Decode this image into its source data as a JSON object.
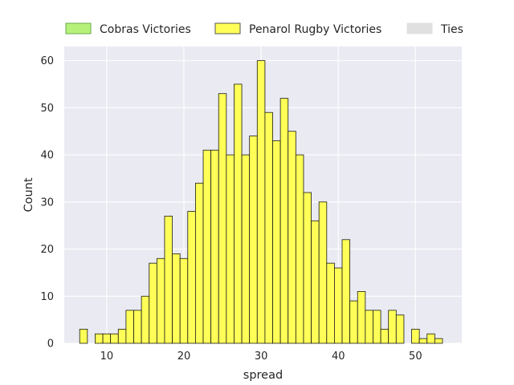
{
  "chart_data": {
    "type": "bar",
    "subtype": "histogram",
    "xlabel": "spread",
    "ylabel": "Count",
    "xlim": [
      4.5,
      56
    ],
    "ylim": [
      0,
      63
    ],
    "x_ticks": [
      10,
      20,
      30,
      40,
      50
    ],
    "y_ticks": [
      0,
      10,
      20,
      30,
      40,
      50,
      60
    ],
    "grid": true,
    "legend_placement": "top",
    "bin_width": 1,
    "series": [
      {
        "name": "Cobras Victories",
        "color": "#b6f27a",
        "values": []
      },
      {
        "name": "Penarol Rugby Victories",
        "color": "#ffff57",
        "x": [
          7,
          9,
          10,
          11,
          12,
          13,
          14,
          15,
          16,
          17,
          18,
          19,
          20,
          21,
          22,
          23,
          24,
          25,
          26,
          27,
          28,
          29,
          30,
          31,
          32,
          33,
          34,
          35,
          36,
          37,
          38,
          39,
          40,
          41,
          42,
          43,
          44,
          45,
          46,
          47,
          48,
          50,
          51,
          52,
          53
        ],
        "values": [
          3,
          2,
          2,
          2,
          3,
          7,
          7,
          10,
          17,
          18,
          27,
          19,
          18,
          28,
          34,
          41,
          41,
          53,
          40,
          55,
          40,
          44,
          60,
          49,
          43,
          52,
          45,
          40,
          32,
          26,
          30,
          17,
          16,
          22,
          9,
          11,
          7,
          7,
          3,
          7,
          6,
          3,
          1,
          2,
          1
        ]
      },
      {
        "name": "Ties",
        "color": "#e0e0e0",
        "values": []
      }
    ]
  }
}
